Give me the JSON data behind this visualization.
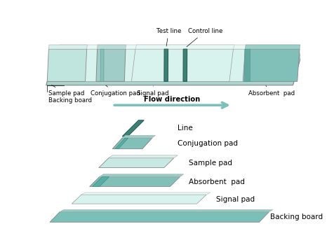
{
  "bg_color": "#ffffff",
  "teal_light": "#c8e8e4",
  "teal_mid": "#7abfb8",
  "teal_dark": "#4a9990",
  "teal_line": "#3d7a72",
  "edge_color": "#888888",
  "labels": {
    "sample_pad": "Sample pad",
    "backing_board_top": "Backing board",
    "conjugation_pad": "Conjugation pad",
    "signal_pad": "Signal pad",
    "absorbent_pad": "Absorbent  pad",
    "test_line": "Test line",
    "control_line": "Control line",
    "flow_direction": "Flow direction",
    "line_legend": "Line",
    "conj_pad_legend": "Conjugation pad",
    "sample_pad_legend": "Sample pad",
    "absorbent_legend": "Absorbent  pad",
    "signal_legend": "Signal pad",
    "backing_legend": "Backing board"
  }
}
